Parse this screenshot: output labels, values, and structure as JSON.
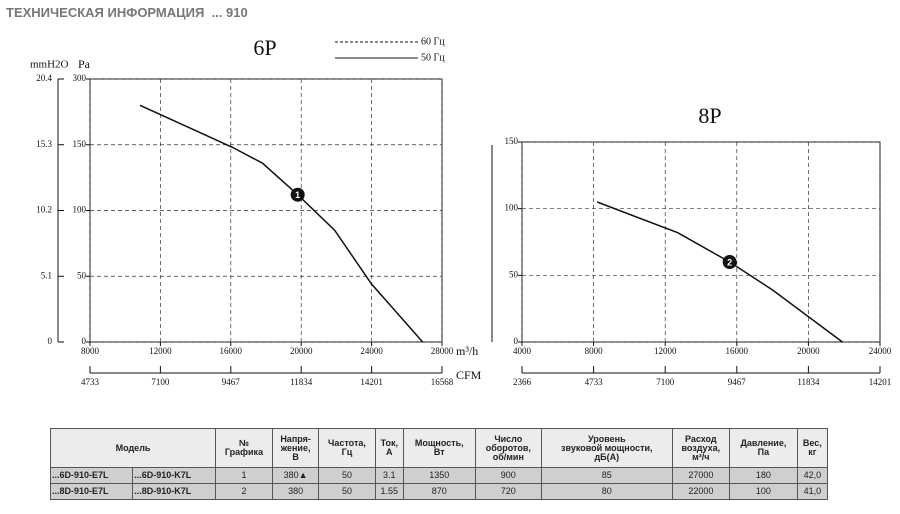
{
  "header": {
    "title": "ТЕХНИЧЕСКАЯ ИНФОРМАЦИЯ",
    "series": "... 910"
  },
  "legend": [
    {
      "label": "60 Гц",
      "style": "dashed"
    },
    {
      "label": "50 Гц",
      "style": "solid"
    }
  ],
  "chart_data": [
    {
      "type": "line",
      "title": "6P",
      "x_label": "m³/h",
      "x2_label": "CFM",
      "y_label": "Pa",
      "y2_label": "mmH2O",
      "x": [
        10840,
        16100,
        17800,
        19800,
        21900,
        24000,
        26900
      ],
      "values": [
        240,
        148,
        136,
        112,
        85,
        44,
        0
      ],
      "color": "#111111",
      "xlim": [
        8000,
        28000
      ],
      "xticks": [
        8000,
        12000,
        16000,
        20000,
        24000,
        28000
      ],
      "x2lim": [
        4733,
        16568
      ],
      "x2ticks": [
        4733,
        7100,
        9467,
        11834,
        14201,
        16568
      ],
      "ylim": [
        0,
        300
      ],
      "yticks": [
        0,
        50,
        100,
        150,
        300
      ],
      "y2ticks": [
        0,
        5.1,
        10.2,
        15.3,
        20.4
      ],
      "markers": [
        {
          "x": 19800,
          "y": 112,
          "label": "1"
        }
      ],
      "grid": true
    },
    {
      "type": "line",
      "title": "8P",
      "x_label": null,
      "x2_label": null,
      "x": [
        8200,
        12700,
        15600,
        18000,
        21900
      ],
      "values": [
        105,
        82,
        60,
        39,
        0
      ],
      "color": "#111111",
      "xlim": [
        4000,
        24000
      ],
      "xticks": [
        4000,
        8000,
        12000,
        16000,
        20000,
        24000
      ],
      "x2lim": [
        2366,
        14201
      ],
      "x2ticks": [
        2366,
        4733,
        7100,
        9467,
        11834,
        14201
      ],
      "ylim": [
        0,
        150
      ],
      "yticks": [
        0,
        50,
        100,
        150
      ],
      "markers": [
        {
          "x": 15600,
          "y": 60,
          "label": "2"
        }
      ],
      "grid": true
    }
  ],
  "table": {
    "header": [
      "Модель",
      "№\nГрафика",
      "Напря-\nжение,\nВ",
      "Частота,\nГц",
      "Ток,\nА",
      "Мощность,\nВт",
      "Число\nоборотов,\nоб/мин",
      "Уровень\nзвуковой мощности,\nдБ(А)",
      "Расход\nвоздуха,\nм³/ч",
      "Давление,\nПа",
      "Вес,\nкг"
    ],
    "rows": [
      [
        "...6D-910-E7L",
        "...6D-910-K7L",
        "1",
        "380▲",
        "50",
        "3.1",
        "1350",
        "900",
        "85",
        "27000",
        "180",
        "42,0"
      ],
      [
        "...8D-910-E7L",
        "...8D-910-K7L",
        "2",
        "380",
        "50",
        "1.55",
        "870",
        "720",
        "80",
        "22000",
        "100",
        "41,0"
      ]
    ]
  }
}
